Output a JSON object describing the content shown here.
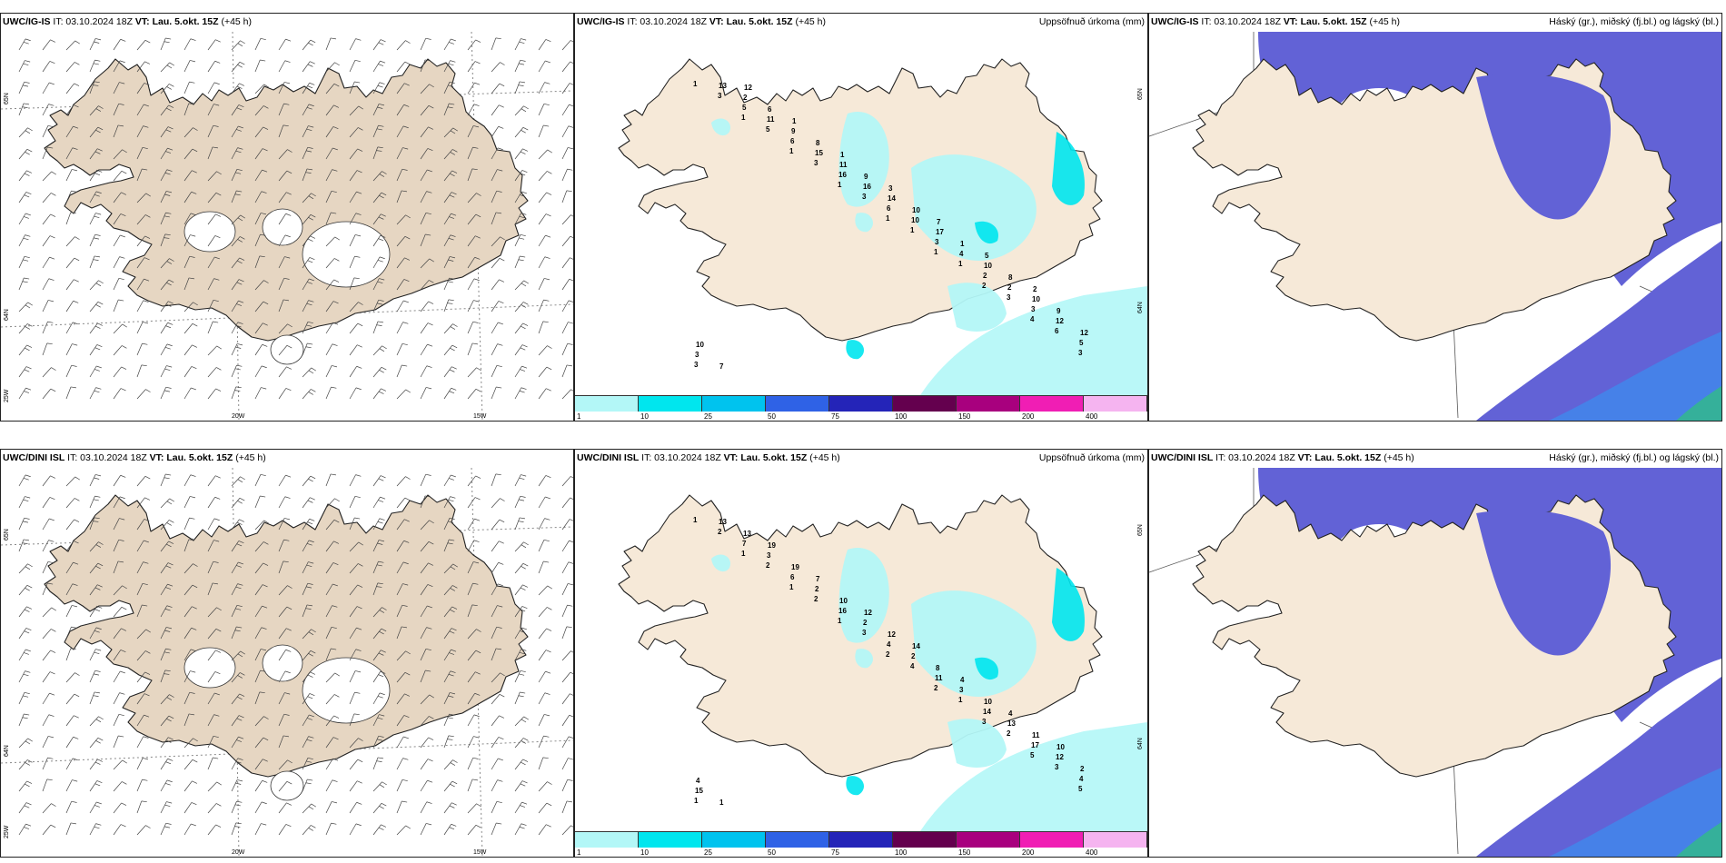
{
  "panels": [
    {
      "id": "p1",
      "model": "UWC/IG-IS",
      "it": "IT: 03.10.2024 18Z",
      "vt_label": "VT:",
      "vt_value": "Lau. 5.okt. 15Z",
      "lead": "(+45 h)",
      "right_title": "",
      "type": "wind",
      "lat_labels": [
        "65N",
        "64N",
        "25W"
      ],
      "lon_labels": [
        "20W",
        "15W"
      ]
    },
    {
      "id": "p2",
      "model": "UWC/IG-IS",
      "it": "IT: 03.10.2024 18Z",
      "vt_label": "VT:",
      "vt_value": "Lau. 5.okt. 15Z",
      "lead": "(+45 h)",
      "right_title": "Uppsöfnuð úrkoma (mm)",
      "type": "precip",
      "lat_labels": [
        "65N",
        "64N"
      ],
      "numbers": [
        "1",
        "1",
        "1",
        "1",
        "1",
        "1",
        "2",
        "4",
        "3",
        "3",
        "5",
        "3",
        "3",
        "1",
        "1",
        "3",
        "6",
        "3",
        "5",
        "6",
        "16",
        "6",
        "3",
        "2",
        "3",
        "5",
        "13",
        "11",
        "15",
        "16",
        "10",
        "4",
        "2",
        "12",
        "3",
        "2",
        "9",
        "11",
        "14",
        "17",
        "10",
        "10",
        "12",
        "7",
        "6",
        "8",
        "9",
        "10",
        "1",
        "8",
        "9",
        "10",
        "12",
        "1",
        "1",
        "3",
        "7",
        "5",
        "2"
      ]
    },
    {
      "id": "p3",
      "model": "UWC/IG-IS",
      "it": "IT: 03.10.2024 18Z",
      "vt_label": "VT:",
      "vt_value": "Lau. 5.okt. 15Z",
      "lead": "(+45 h)",
      "right_title": "Háský (gr.), miðský (fj.bl.) og lágský (bl.)",
      "type": "cloud"
    },
    {
      "id": "p4",
      "model": "UWC/DINI ISL",
      "it": "IT: 03.10.2024 18Z",
      "vt_label": "VT:",
      "vt_value": "Lau. 5.okt. 15Z",
      "lead": "(+45 h)",
      "right_title": "",
      "type": "wind",
      "lat_labels": [
        "65N",
        "64N",
        "25W"
      ],
      "lon_labels": [
        "20W",
        "15W"
      ]
    },
    {
      "id": "p5",
      "model": "UWC/DINI ISL",
      "it": "IT: 03.10.2024 18Z",
      "vt_label": "VT:",
      "vt_value": "Lau. 5.okt. 15Z",
      "lead": "(+45 h)",
      "right_title": "Uppsöfnuð úrkoma (mm)",
      "type": "precip",
      "lat_labels": [
        "65N",
        "64N"
      ],
      "numbers": [
        "1",
        "1",
        "1",
        "1",
        "2",
        "2",
        "3",
        "5",
        "5",
        "2",
        "2",
        "2",
        "3",
        "4",
        "1",
        "2",
        "3",
        "1",
        "7",
        "6",
        "16",
        "4",
        "11",
        "14",
        "17",
        "4",
        "13",
        "3",
        "2",
        "2",
        "2",
        "3",
        "13",
        "12",
        "15",
        "13",
        "19",
        "10",
        "12",
        "8",
        "10",
        "11",
        "2",
        "1",
        "19",
        "7",
        "12",
        "14",
        "4",
        "4",
        "10",
        "4"
      ]
    },
    {
      "id": "p6",
      "model": "UWC/DINI ISL",
      "it": "IT: 03.10.2024 18Z",
      "vt_label": "VT:",
      "vt_value": "Lau. 5.okt. 15Z",
      "lead": "(+45 h)",
      "right_title": "Háský (gr.), miðský (fj.bl.) og lágský (bl.)",
      "type": "cloud"
    }
  ],
  "colorbar": {
    "labels": [
      "1",
      "10",
      "25",
      "50",
      "75",
      "100",
      "150",
      "200",
      "400"
    ],
    "colors": [
      "#b3f7f7",
      "#00e6ee",
      "#00c3ee",
      "#2f62e6",
      "#2424b8",
      "#64004e",
      "#a8007e",
      "#f01eb4",
      "#f5b4f0"
    ]
  },
  "colors": {
    "land": "#f6e9d8",
    "land_wind": "#e6d6c2",
    "coast": "#222222",
    "high_cloud": "#6262d6",
    "cloud_light": "#3a8ff0",
    "cloud_teal": "#35b09a"
  }
}
